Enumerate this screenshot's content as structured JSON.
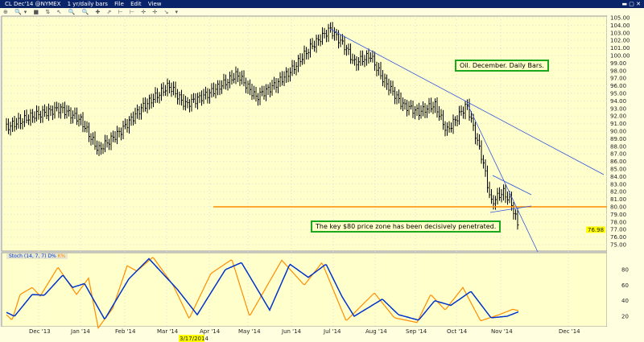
{
  "window": {
    "symbol": "CL Dec'14 @NYMEX",
    "interval": "1 yr/daily bars",
    "menus": [
      "File",
      "Edit",
      "View"
    ]
  },
  "annotations": {
    "title_box": "Oil. December. Daily Bars.",
    "note_box": "The key $80 price zone has been decisively penetrated."
  },
  "indicator": {
    "label": "Stoch",
    "params": "(14, 7, 7)",
    "d_label": "D%",
    "k_label": "K%"
  },
  "highlighted_date": "3/17/2014",
  "last_price": "76.98",
  "colors": {
    "background": "#ffffcc",
    "bars": "#000000",
    "trendlines": "#3355dd",
    "support_line": "#ff8c00",
    "stoch_d": "#0033cc",
    "stoch_k": "#ff8c00",
    "annotation_border": "#1ca81c"
  },
  "chart_data": [
    {
      "type": "bar",
      "title": "",
      "xlabel": "",
      "ylabel": "",
      "ylim": [
        75,
        105
      ],
      "y_ticks": [
        "105.00",
        "104.00",
        "103.00",
        "102.00",
        "101.00",
        "100.00",
        "99.00",
        "98.00",
        "97.00",
        "96.00",
        "95.00",
        "94.00",
        "93.00",
        "92.00",
        "91.00",
        "90.00",
        "89.00",
        "88.00",
        "87.00",
        "86.00",
        "85.00",
        "84.00",
        "83.00",
        "82.00",
        "81.00",
        "80.00",
        "79.00",
        "78.00",
        "77.00",
        "76.00",
        "75.00"
      ],
      "x_ticks": [
        "Dec '13",
        "Jan '14",
        "Feb '14",
        "Mar '14",
        "Apr '14",
        "May '14",
        "Jun '14",
        "Jul '14",
        "Aug '14",
        "Sep '14",
        "Oct '14",
        "Nov '14",
        "Dec '14"
      ],
      "approx_closes": [
        [
          "Nov '13",
          90.5
        ],
        [
          "Dec '13",
          92
        ],
        [
          "Dec '13",
          93
        ],
        [
          "Jan '14",
          91.5
        ],
        [
          "Jan '14",
          87.5
        ],
        [
          "Feb '14",
          90
        ],
        [
          "Feb '14",
          93
        ],
        [
          "Mar '14",
          96
        ],
        [
          "Mar '14",
          93.5
        ],
        [
          "Apr '14",
          95
        ],
        [
          "Apr '14",
          97.5
        ],
        [
          "May '14",
          94.5
        ],
        [
          "May '14",
          96
        ],
        [
          "Jun '14",
          98
        ],
        [
          "Jun '14",
          101
        ],
        [
          "Jun '14",
          103.5
        ],
        [
          "Jul '14",
          101
        ],
        [
          "Jul '14",
          99
        ],
        [
          "Jul '14",
          100
        ],
        [
          "Aug '14",
          97
        ],
        [
          "Aug '14",
          93.5
        ],
        [
          "Sep '14",
          92.5
        ],
        [
          "Sep '14",
          93.5
        ],
        [
          "Sep '14",
          90
        ],
        [
          "Oct '14",
          93.5
        ],
        [
          "Oct '14",
          86
        ],
        [
          "Oct '14",
          80.5
        ],
        [
          "Oct '14",
          82
        ],
        [
          "Nov '14",
          80.5
        ],
        [
          "Nov '14",
          76.98
        ]
      ],
      "support_level": 80
    },
    {
      "type": "line",
      "ylim": [
        0,
        100
      ],
      "y_ticks": [
        "80",
        "60",
        "40",
        "20"
      ],
      "series": [
        {
          "name": "D%",
          "values": [
            25,
            20,
            48,
            47,
            73,
            57,
            62,
            16,
            68,
            94,
            55,
            22,
            80,
            89,
            28,
            87,
            70,
            87,
            45,
            20,
            42,
            22,
            15,
            40,
            34,
            52,
            18,
            20,
            26
          ]
        },
        {
          "name": "K%",
          "values": [
            22,
            15,
            48,
            57,
            46,
            83,
            48,
            69,
            5,
            30,
            85,
            78,
            96,
            60,
            17,
            75,
            93,
            20,
            92,
            60,
            89,
            14,
            50,
            18,
            12,
            48,
            28,
            57,
            14,
            22,
            29,
            27
          ]
        }
      ]
    }
  ]
}
